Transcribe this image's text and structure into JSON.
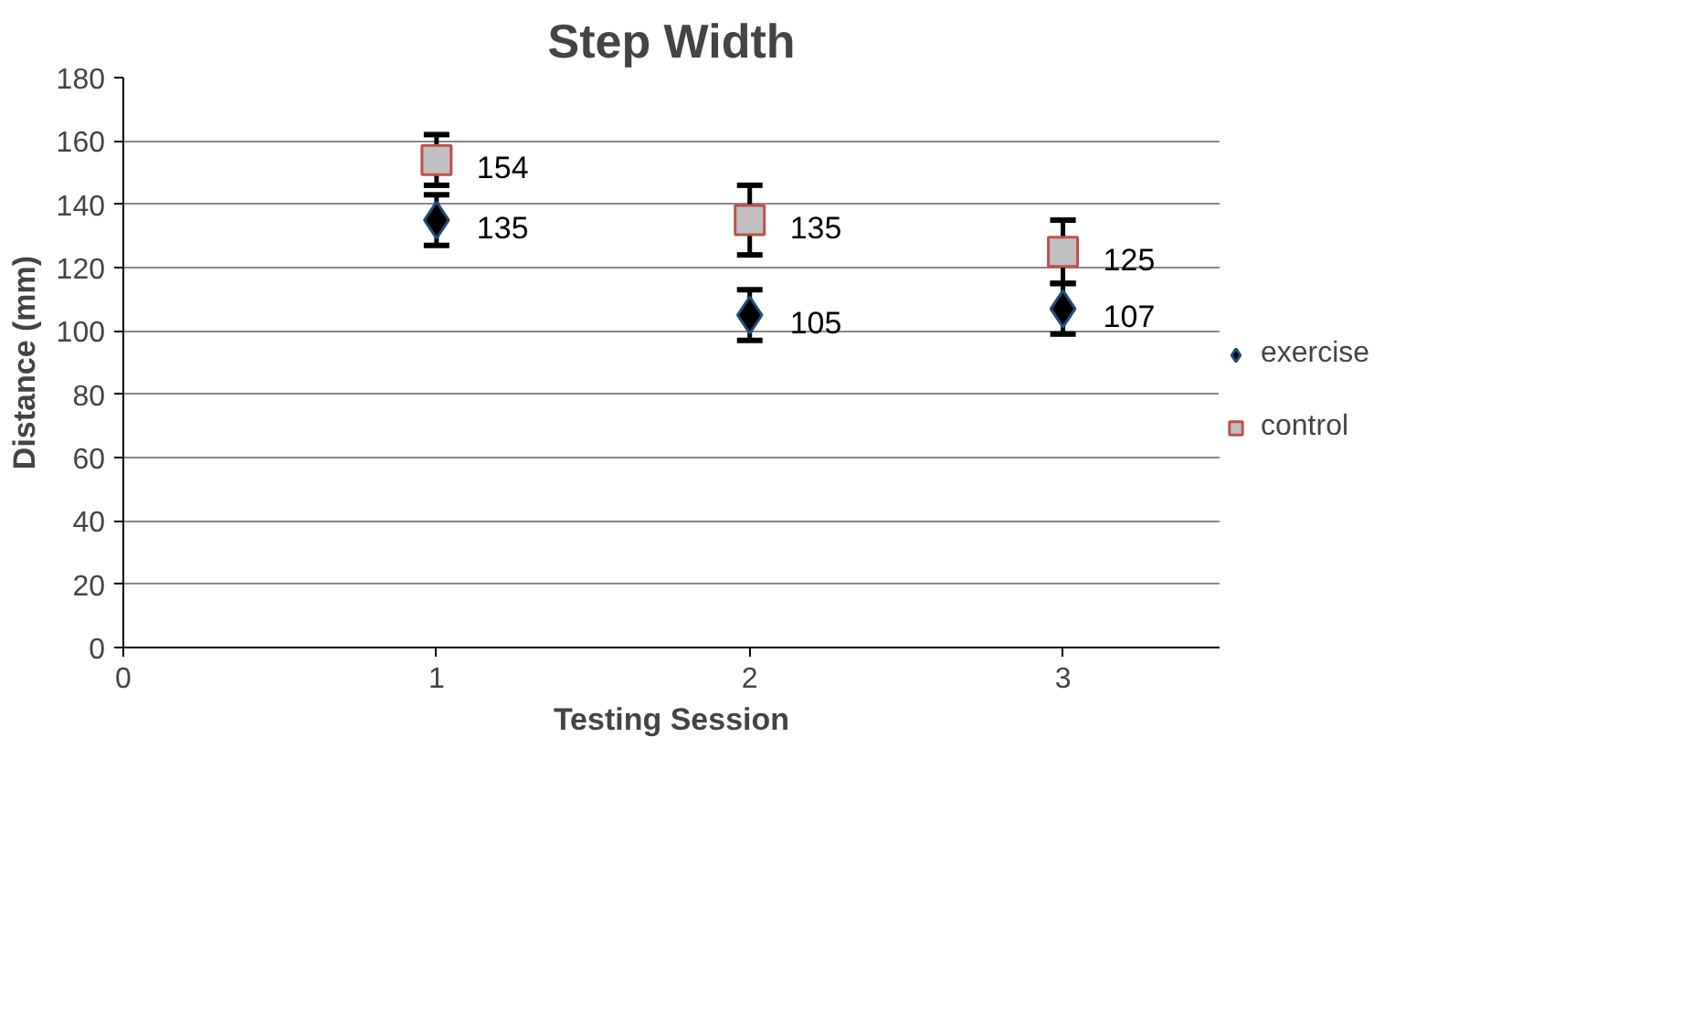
{
  "chart_data": {
    "type": "scatter",
    "title": "Step Width",
    "xlabel": "Testing Session",
    "ylabel": "Distance (mm)",
    "x": [
      1,
      2,
      3
    ],
    "xlim": [
      0,
      3.5
    ],
    "xticks": [
      0,
      1,
      2,
      3
    ],
    "ylim": [
      0,
      180
    ],
    "yticks": [
      0,
      20,
      40,
      60,
      80,
      100,
      120,
      140,
      160,
      180
    ],
    "grid": "y",
    "legend": "right",
    "data_labels": true,
    "series": [
      {
        "name": "exercise",
        "color": "#000000",
        "marker": "diamond",
        "values": [
          135,
          105,
          107
        ],
        "errors": [
          8,
          8,
          8
        ]
      },
      {
        "name": "control",
        "color": "#c0c0c0",
        "marker": "square",
        "values": [
          154,
          135,
          125
        ],
        "errors": [
          8,
          11,
          10
        ]
      }
    ]
  }
}
